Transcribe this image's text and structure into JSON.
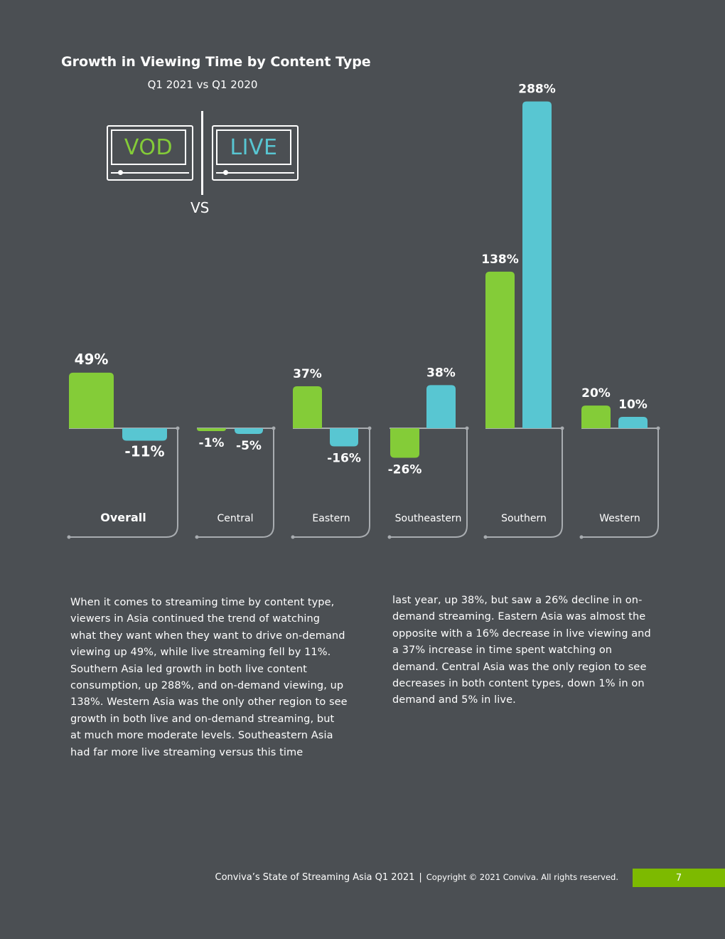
{
  "colors": {
    "vod": "#84cc38",
    "live": "#58c6d2",
    "background": "#4b4f53",
    "accent": "#7dba00"
  },
  "chart_data": {
    "type": "bar",
    "title": "Growth in Viewing Time by Content Type",
    "subtitle": "Q1 2021 vs Q1 2020",
    "legend": {
      "vod": "VOD",
      "live": "LIVE",
      "vs": "VS"
    },
    "categories": [
      "Overall",
      "Central",
      "Eastern",
      "Southeastern",
      "Southern",
      "Western"
    ],
    "series": [
      {
        "name": "VOD",
        "values": [
          49,
          -1,
          37,
          -26,
          138,
          20
        ],
        "labels": [
          "49%",
          "-1%",
          "37%",
          "-26%",
          "138%",
          "20%"
        ]
      },
      {
        "name": "LIVE",
        "values": [
          -11,
          -5,
          -16,
          38,
          288,
          10
        ],
        "labels": [
          "-11%",
          "-5%",
          "-16%",
          "38%",
          "288%",
          "10%"
        ]
      }
    ],
    "unit": "%"
  },
  "body": {
    "col1": "When it comes to streaming time by content type, viewers in Asia continued the trend of watching what they want when they want to drive on-demand viewing up 49%, while live streaming fell by 11%. Southern Asia led growth in both live content consumption, up 288%, and on-demand viewing, up 138%. Western Asia was the only other region to see growth in both live and on-demand streaming, but at much more moderate levels. Southeastern Asia had far more live streaming versus this time",
    "col2": "last year, up 38%, but saw a 26% decline in on-demand streaming. Eastern Asia was almost the opposite with a 16% decrease in live viewing and a 37% increase in time spent watching on demand. Central Asia was the only region to see decreases in both content types, down 1% in on demand and 5% in live."
  },
  "footer": {
    "report": "Conviva’s State of Streaming Asia Q1 2021",
    "separator": "|",
    "copyright": "Copyright © 2021 Conviva. All rights reserved.",
    "page": "7"
  }
}
